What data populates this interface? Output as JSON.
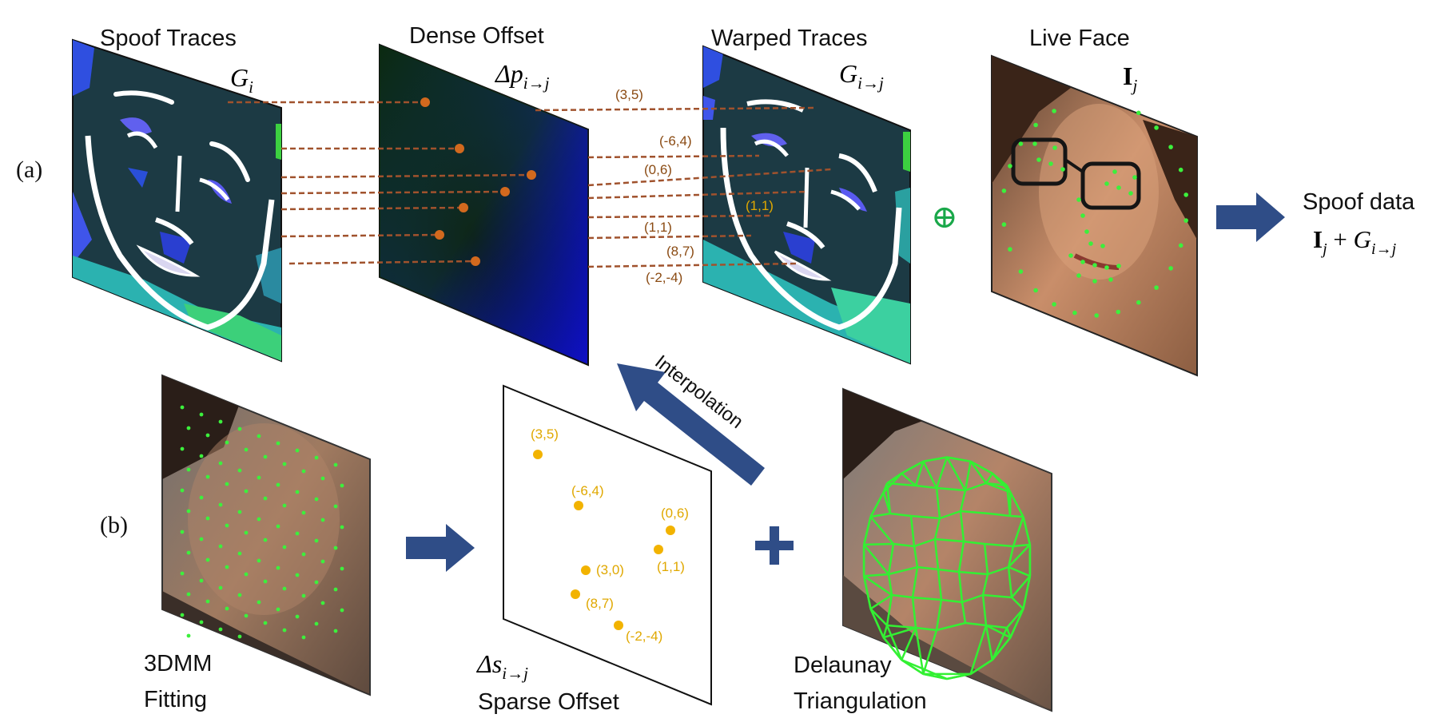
{
  "panel_labels": {
    "a": "(a)",
    "b": "(b)"
  },
  "top_row": {
    "spoof_traces": {
      "title": "Spoof Traces",
      "symbol_main": "G",
      "symbol_sub": "i"
    },
    "dense_offset": {
      "title": "Dense Offset",
      "symbol_main": "Δp",
      "symbol_sub": "i→j"
    },
    "warped_traces": {
      "title": "Warped Traces",
      "symbol_main": "G",
      "symbol_sub": "i→j"
    },
    "live_face": {
      "title": "Live Face",
      "symbol_main": "I",
      "symbol_sub": "j"
    },
    "oplus": "⊕",
    "spoof_data": {
      "title": "Spoof data",
      "formula_I": "I",
      "formula_I_sub": "j",
      "formula_plus": " + ",
      "formula_G": "G",
      "formula_G_sub": "i→j"
    }
  },
  "dense_offset_coords": [
    "(3,5)",
    "(-6,4)",
    "(0,6)",
    "(1,1)",
    "(8,7)",
    "(-2,-4)"
  ],
  "warped_highlight": "(1,1)",
  "bottom_row": {
    "fitting": {
      "line1": "3DMM",
      "line2": "Fitting"
    },
    "sparse_offset": {
      "symbol_main": "Δs",
      "symbol_sub": "i→j",
      "title": "Sparse Offset"
    },
    "sparse_points": [
      "(3,5)",
      "(-6,4)",
      "(0,6)",
      "(1,1)",
      "(3,0)",
      "(8,7)",
      "(-2,-4)"
    ],
    "plus": "+",
    "interpolation": "Interpolation",
    "delaunay": {
      "line1": "Delaunay",
      "line2": "Triangulation"
    }
  },
  "colors": {
    "brown": "#8a4a12",
    "dot_orange": "#d2691e",
    "gold": "#e0a800",
    "arrow_blue": "#2f4d87",
    "mesh_green": "#3cf03c",
    "oplus_green": "#1aa84a",
    "trace_bg": "#1c3a44"
  }
}
